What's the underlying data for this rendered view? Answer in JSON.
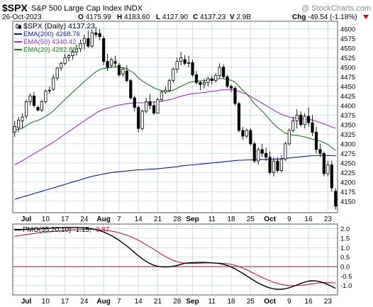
{
  "header": {
    "symbol": "$SPX",
    "name": "S&P 500 Large Cap Index",
    "exchange": "INDX",
    "watermark": "@ StockCharts.com",
    "date": "26-Oct-2023",
    "ohlc": [
      {
        "k": "O",
        "v": "4175.99"
      },
      {
        "k": "H",
        "v": "4183.60"
      },
      {
        "k": "L",
        "v": "4127.90"
      },
      {
        "k": "C",
        "v": "4137.23"
      },
      {
        "k": "V",
        "v": "2.9B"
      }
    ],
    "chg_label": "Chg",
    "chg_value": "-49.54 (-1.18%)",
    "direction_icon": "down-triangle-icon"
  },
  "colors": {
    "up_candle": "#ffffff",
    "down_candle": "#000000",
    "ema200": "#0d1a8c",
    "ema50": "#9b30c0",
    "ema20": "#1d7a1d",
    "pmo": "#000000",
    "pmo_signal": "#b0203a",
    "zero_line": "#a8142a",
    "grid": "#bcd0e0",
    "chg_negative": "#cc0000"
  },
  "chart_data": [
    {
      "type": "candlestick",
      "legend": [
        {
          "id": "price",
          "label": "$SPX (Daily) 4137.23"
        },
        {
          "id": "ema200",
          "label": "EMA(200) 4268.76"
        },
        {
          "id": "ema50",
          "label": "EMA(50) 4340.42"
        },
        {
          "id": "ema20",
          "label": "EMA(20) 4282.85"
        }
      ],
      "legend_placement": "top-left",
      "ylim": [
        4120,
        4620
      ],
      "y_ticks": [
        4150,
        4175,
        4200,
        4225,
        4250,
        4275,
        4300,
        4325,
        4350,
        4375,
        4400,
        4425,
        4450,
        4475,
        4500,
        4525,
        4550,
        4575,
        4600
      ],
      "x_labels": [
        {
          "i": 3,
          "label": "Jul"
        },
        {
          "i": 8,
          "label": "10"
        },
        {
          "i": 13,
          "label": "17"
        },
        {
          "i": 18,
          "label": "24"
        },
        {
          "i": 23,
          "label": "Aug"
        },
        {
          "i": 27,
          "label": "7"
        },
        {
          "i": 32,
          "label": "14"
        },
        {
          "i": 37,
          "label": "21"
        },
        {
          "i": 42,
          "label": "28"
        },
        {
          "i": 46,
          "label": "Sep"
        },
        {
          "i": 51,
          "label": "11"
        },
        {
          "i": 56,
          "label": "18"
        },
        {
          "i": 61,
          "label": "25"
        },
        {
          "i": 66,
          "label": "Oct"
        },
        {
          "i": 71,
          "label": "9"
        },
        {
          "i": 76,
          "label": "16"
        },
        {
          "i": 81,
          "label": "23"
        }
      ],
      "grid": true,
      "candles": [
        {
          "o": 4330,
          "h": 4360,
          "l": 4318,
          "c": 4345
        },
        {
          "o": 4342,
          "h": 4370,
          "l": 4330,
          "c": 4362
        },
        {
          "o": 4360,
          "h": 4380,
          "l": 4340,
          "c": 4370
        },
        {
          "o": 4372,
          "h": 4415,
          "l": 4365,
          "c": 4410
        },
        {
          "o": 4410,
          "h": 4432,
          "l": 4400,
          "c": 4425
        },
        {
          "o": 4425,
          "h": 4435,
          "l": 4395,
          "c": 4400
        },
        {
          "o": 4395,
          "h": 4400,
          "l": 4385,
          "c": 4388
        },
        {
          "o": 4388,
          "h": 4415,
          "l": 4383,
          "c": 4410
        },
        {
          "o": 4410,
          "h": 4442,
          "l": 4405,
          "c": 4438
        },
        {
          "o": 4438,
          "h": 4450,
          "l": 4430,
          "c": 4440
        },
        {
          "o": 4442,
          "h": 4480,
          "l": 4438,
          "c": 4472
        },
        {
          "o": 4472,
          "h": 4500,
          "l": 4465,
          "c": 4498
        },
        {
          "o": 4498,
          "h": 4515,
          "l": 4490,
          "c": 4510
        },
        {
          "o": 4510,
          "h": 4535,
          "l": 4505,
          "c": 4525
        },
        {
          "o": 4525,
          "h": 4535,
          "l": 4515,
          "c": 4530
        },
        {
          "o": 4530,
          "h": 4545,
          "l": 4520,
          "c": 4540
        },
        {
          "o": 4540,
          "h": 4560,
          "l": 4530,
          "c": 4548
        },
        {
          "o": 4548,
          "h": 4572,
          "l": 4540,
          "c": 4562
        },
        {
          "o": 4562,
          "h": 4585,
          "l": 4545,
          "c": 4575
        },
        {
          "o": 4575,
          "h": 4595,
          "l": 4550,
          "c": 4555
        },
        {
          "o": 4555,
          "h": 4598,
          "l": 4550,
          "c": 4590
        },
        {
          "o": 4590,
          "h": 4605,
          "l": 4578,
          "c": 4585
        },
        {
          "o": 4588,
          "h": 4600,
          "l": 4570,
          "c": 4580
        },
        {
          "o": 4575,
          "h": 4582,
          "l": 4505,
          "c": 4515
        },
        {
          "o": 4515,
          "h": 4535,
          "l": 4490,
          "c": 4500
        },
        {
          "o": 4505,
          "h": 4525,
          "l": 4498,
          "c": 4520
        },
        {
          "o": 4515,
          "h": 4530,
          "l": 4500,
          "c": 4510
        },
        {
          "o": 4505,
          "h": 4512,
          "l": 4475,
          "c": 4480
        },
        {
          "o": 4482,
          "h": 4500,
          "l": 4475,
          "c": 4495
        },
        {
          "o": 4490,
          "h": 4505,
          "l": 4460,
          "c": 4465
        },
        {
          "o": 4465,
          "h": 4470,
          "l": 4415,
          "c": 4420
        },
        {
          "o": 4420,
          "h": 4425,
          "l": 4385,
          "c": 4395
        },
        {
          "o": 4395,
          "h": 4400,
          "l": 4330,
          "c": 4340
        },
        {
          "o": 4340,
          "h": 4390,
          "l": 4335,
          "c": 4385
        },
        {
          "o": 4385,
          "h": 4420,
          "l": 4380,
          "c": 4410
        },
        {
          "o": 4410,
          "h": 4430,
          "l": 4390,
          "c": 4400
        },
        {
          "o": 4400,
          "h": 4410,
          "l": 4375,
          "c": 4380
        },
        {
          "o": 4380,
          "h": 4420,
          "l": 4378,
          "c": 4415
        },
        {
          "o": 4415,
          "h": 4440,
          "l": 4410,
          "c": 4435
        },
        {
          "o": 4435,
          "h": 4450,
          "l": 4430,
          "c": 4440
        },
        {
          "o": 4440,
          "h": 4470,
          "l": 4435,
          "c": 4465
        },
        {
          "o": 4465,
          "h": 4500,
          "l": 4460,
          "c": 4495
        },
        {
          "o": 4495,
          "h": 4525,
          "l": 4485,
          "c": 4515
        },
        {
          "o": 4515,
          "h": 4540,
          "l": 4505,
          "c": 4525
        },
        {
          "o": 4520,
          "h": 4532,
          "l": 4505,
          "c": 4510
        },
        {
          "o": 4510,
          "h": 4530,
          "l": 4500,
          "c": 4512
        },
        {
          "o": 4512,
          "h": 4520,
          "l": 4475,
          "c": 4480
        },
        {
          "o": 4480,
          "h": 4490,
          "l": 4455,
          "c": 4460
        },
        {
          "o": 4460,
          "h": 4465,
          "l": 4440,
          "c": 4455
        },
        {
          "o": 4455,
          "h": 4470,
          "l": 4445,
          "c": 4460
        },
        {
          "o": 4460,
          "h": 4475,
          "l": 4450,
          "c": 4470
        },
        {
          "o": 4470,
          "h": 4478,
          "l": 4455,
          "c": 4465
        },
        {
          "o": 4465,
          "h": 4485,
          "l": 4460,
          "c": 4478
        },
        {
          "o": 4478,
          "h": 4510,
          "l": 4470,
          "c": 4500
        },
        {
          "o": 4500,
          "h": 4508,
          "l": 4470,
          "c": 4475
        },
        {
          "o": 4475,
          "h": 4480,
          "l": 4445,
          "c": 4450
        },
        {
          "o": 4450,
          "h": 4455,
          "l": 4435,
          "c": 4445
        },
        {
          "o": 4445,
          "h": 4450,
          "l": 4400,
          "c": 4405
        },
        {
          "o": 4405,
          "h": 4410,
          "l": 4330,
          "c": 4335
        },
        {
          "o": 4335,
          "h": 4345,
          "l": 4310,
          "c": 4320
        },
        {
          "o": 4320,
          "h": 4340,
          "l": 4315,
          "c": 4335
        },
        {
          "o": 4335,
          "h": 4340,
          "l": 4295,
          "c": 4300
        },
        {
          "o": 4300,
          "h": 4305,
          "l": 4250,
          "c": 4255
        },
        {
          "o": 4255,
          "h": 4290,
          "l": 4245,
          "c": 4285
        },
        {
          "o": 4285,
          "h": 4300,
          "l": 4265,
          "c": 4275
        },
        {
          "o": 4275,
          "h": 4290,
          "l": 4255,
          "c": 4265
        },
        {
          "o": 4265,
          "h": 4280,
          "l": 4220,
          "c": 4225
        },
        {
          "o": 4225,
          "h": 4265,
          "l": 4215,
          "c": 4255
        },
        {
          "o": 4255,
          "h": 4265,
          "l": 4225,
          "c": 4230
        },
        {
          "o": 4230,
          "h": 4270,
          "l": 4225,
          "c": 4260
        },
        {
          "o": 4260,
          "h": 4305,
          "l": 4255,
          "c": 4300
        },
        {
          "o": 4300,
          "h": 4340,
          "l": 4295,
          "c": 4335
        },
        {
          "o": 4335,
          "h": 4370,
          "l": 4330,
          "c": 4360
        },
        {
          "o": 4360,
          "h": 4390,
          "l": 4340,
          "c": 4375
        },
        {
          "o": 4375,
          "h": 4385,
          "l": 4345,
          "c": 4350
        },
        {
          "o": 4350,
          "h": 4380,
          "l": 4340,
          "c": 4372
        },
        {
          "o": 4372,
          "h": 4395,
          "l": 4345,
          "c": 4355
        },
        {
          "o": 4355,
          "h": 4375,
          "l": 4320,
          "c": 4330
        },
        {
          "o": 4330,
          "h": 4345,
          "l": 4275,
          "c": 4285
        },
        {
          "o": 4285,
          "h": 4300,
          "l": 4265,
          "c": 4275
        },
        {
          "o": 4275,
          "h": 4280,
          "l": 4215,
          "c": 4222
        },
        {
          "o": 4222,
          "h": 4255,
          "l": 4215,
          "c": 4245
        },
        {
          "o": 4245,
          "h": 4255,
          "l": 4175,
          "c": 4185
        },
        {
          "o": 4176,
          "h": 4184,
          "l": 4128,
          "c": 4137
        }
      ],
      "ema200": [
        4155,
        4158,
        4161,
        4164,
        4167,
        4170,
        4173,
        4176,
        4179,
        4182,
        4185,
        4188,
        4191,
        4194,
        4197,
        4200,
        4203,
        4206,
        4209,
        4212,
        4215,
        4217,
        4219,
        4221,
        4223,
        4225,
        4226,
        4227,
        4228,
        4229,
        4230,
        4231,
        4232,
        4232,
        4233,
        4234,
        4234,
        4235,
        4236,
        4237,
        4238,
        4239,
        4240,
        4242,
        4243,
        4244,
        4245,
        4246,
        4247,
        4248,
        4249,
        4250,
        4251,
        4252,
        4253,
        4254,
        4255,
        4256,
        4257,
        4257,
        4258,
        4258,
        4258,
        4259,
        4259,
        4259,
        4259,
        4260,
        4260,
        4261,
        4262,
        4263,
        4264,
        4265,
        4266,
        4267,
        4268,
        4269,
        4269,
        4270,
        4270,
        4269,
        4269,
        4268.76
      ],
      "ema50": [
        4245,
        4250,
        4256,
        4262,
        4268,
        4274,
        4280,
        4286,
        4292,
        4298,
        4304,
        4311,
        4318,
        4325,
        4332,
        4339,
        4346,
        4353,
        4360,
        4367,
        4373,
        4380,
        4386,
        4390,
        4393,
        4396,
        4399,
        4401,
        4403,
        4405,
        4406,
        4407,
        4407,
        4407,
        4408,
        4409,
        4409,
        4410,
        4411,
        4413,
        4415,
        4418,
        4421,
        4424,
        4427,
        4429,
        4431,
        4432,
        4433,
        4434,
        4436,
        4437,
        4438,
        4440,
        4441,
        4441,
        4441,
        4440,
        4437,
        4433,
        4429,
        4424,
        4418,
        4412,
        4406,
        4400,
        4394,
        4388,
        4382,
        4377,
        4373,
        4370,
        4368,
        4367,
        4366,
        4365,
        4364,
        4362,
        4359,
        4356,
        4352,
        4348,
        4344,
        4340.42
      ],
      "ema20": [
        4335,
        4338,
        4341,
        4347,
        4354,
        4358,
        4361,
        4366,
        4372,
        4378,
        4386,
        4396,
        4406,
        4416,
        4425,
        4435,
        4444,
        4453,
        4463,
        4471,
        4480,
        4488,
        4494,
        4497,
        4498,
        4500,
        4501,
        4500,
        4499,
        4496,
        4490,
        4483,
        4472,
        4464,
        4458,
        4452,
        4446,
        4442,
        4439,
        4437,
        4437,
        4440,
        4445,
        4450,
        4455,
        4460,
        4462,
        4463,
        4464,
        4465,
        4466,
        4467,
        4468,
        4470,
        4470,
        4468,
        4466,
        4460,
        4450,
        4440,
        4430,
        4418,
        4405,
        4395,
        4385,
        4375,
        4362,
        4352,
        4342,
        4335,
        4328,
        4325,
        4323,
        4322,
        4320,
        4318,
        4315,
        4312,
        4310,
        4307,
        4303,
        4298,
        4290,
        4282.85
      ]
    },
    {
      "type": "line",
      "legend": [
        {
          "id": "pmo",
          "label": "PMO(35,20,10)"
        },
        {
          "id": "pmo_value",
          "label": "-1.15"
        },
        {
          "id": "pmo_signal",
          "label": "-0.87"
        }
      ],
      "ylim": [
        -1.5,
        2.25
      ],
      "y_ticks": [
        -1.0,
        -0.5,
        0.0,
        0.5,
        1.0,
        1.5,
        2.0
      ],
      "zero_line": true,
      "pmo": [
        1.95,
        1.95,
        1.96,
        1.97,
        1.98,
        1.99,
        2.0,
        2.01,
        2.02,
        2.03,
        2.04,
        2.05,
        2.05,
        2.06,
        2.06,
        2.07,
        2.07,
        2.06,
        2.05,
        2.03,
        2.0,
        1.96,
        1.9,
        1.83,
        1.74,
        1.64,
        1.52,
        1.39,
        1.24,
        1.09,
        0.92,
        0.74,
        0.57,
        0.41,
        0.27,
        0.16,
        0.07,
        0.01,
        -0.01,
        -0.02,
        -0.01,
        0.02,
        0.06,
        0.12,
        0.17,
        0.2,
        0.21,
        0.22,
        0.22,
        0.22,
        0.21,
        0.2,
        0.18,
        0.16,
        0.12,
        0.06,
        -0.02,
        -0.12,
        -0.24,
        -0.36,
        -0.49,
        -0.62,
        -0.75,
        -0.87,
        -0.97,
        -1.06,
        -1.13,
        -1.18,
        -1.2,
        -1.2,
        -1.17,
        -1.12,
        -1.05,
        -0.97,
        -0.89,
        -0.82,
        -0.77,
        -0.75,
        -0.76,
        -0.8,
        -0.87,
        -0.95,
        -1.05,
        -1.15
      ],
      "signal": [
        1.6,
        1.63,
        1.66,
        1.69,
        1.72,
        1.75,
        1.78,
        1.8,
        1.82,
        1.84,
        1.86,
        1.88,
        1.9,
        1.91,
        1.93,
        1.94,
        1.95,
        1.96,
        1.97,
        1.97,
        1.97,
        1.96,
        1.95,
        1.93,
        1.91,
        1.88,
        1.84,
        1.79,
        1.73,
        1.66,
        1.58,
        1.49,
        1.39,
        1.28,
        1.16,
        1.04,
        0.91,
        0.78,
        0.65,
        0.53,
        0.42,
        0.33,
        0.26,
        0.21,
        0.18,
        0.17,
        0.17,
        0.17,
        0.18,
        0.19,
        0.19,
        0.19,
        0.19,
        0.18,
        0.17,
        0.15,
        0.12,
        0.07,
        0.0,
        -0.08,
        -0.17,
        -0.27,
        -0.37,
        -0.47,
        -0.57,
        -0.66,
        -0.75,
        -0.83,
        -0.89,
        -0.94,
        -0.98,
        -1.0,
        -1.01,
        -1.0,
        -0.99,
        -0.97,
        -0.94,
        -0.91,
        -0.88,
        -0.86,
        -0.85,
        -0.85,
        -0.86,
        -0.87
      ]
    }
  ]
}
